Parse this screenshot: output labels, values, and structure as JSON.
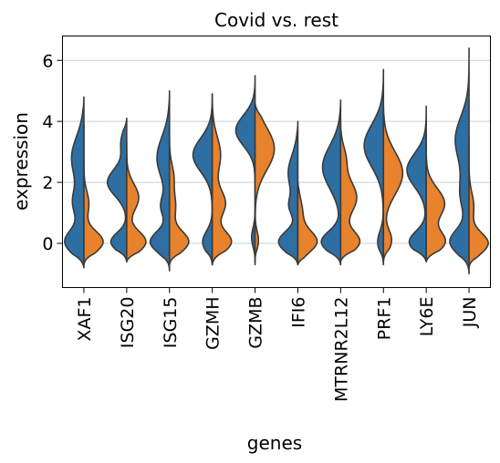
{
  "chart_data": {
    "type": "violin",
    "title": "Covid vs. rest",
    "xlabel": "genes",
    "ylabel": "expression",
    "ylim": [
      -1.45,
      6.8
    ],
    "yticks": [
      0,
      2,
      4,
      6
    ],
    "grid": "horizontal",
    "split": true,
    "categories": [
      "XAF1",
      "ISG20",
      "ISG15",
      "GZMH",
      "GZMB",
      "IFI6",
      "MTRNR2L12",
      "PRF1",
      "LY6E",
      "JUN"
    ],
    "series": [
      {
        "color": "#2e6fa3",
        "side": "left",
        "distributions": [
          {
            "min": -0.8,
            "max": 4.8,
            "peaks": [
              [
                0.05,
                0.85,
                0.4
              ],
              [
                1.3,
                0.45,
                0.45
              ],
              [
                2.8,
                0.55,
                0.7
              ]
            ]
          },
          {
            "min": -0.6,
            "max": 4.1,
            "peaks": [
              [
                0.05,
                0.7,
                0.3
              ],
              [
                2.0,
                0.85,
                0.45
              ],
              [
                3.3,
                0.25,
                0.4
              ]
            ]
          },
          {
            "min": -0.9,
            "max": 5.0,
            "peaks": [
              [
                0.05,
                0.85,
                0.35
              ],
              [
                1.2,
                0.35,
                0.35
              ],
              [
                2.8,
                0.55,
                0.7
              ]
            ]
          },
          {
            "min": -0.7,
            "max": 4.9,
            "peaks": [
              [
                0.05,
                0.5,
                0.35
              ],
              [
                2.9,
                1.0,
                0.55
              ]
            ]
          },
          {
            "min": -0.7,
            "max": 5.5,
            "peaks": [
              [
                0.2,
                0.18,
                0.3
              ],
              [
                3.7,
                1.0,
                0.5
              ]
            ]
          },
          {
            "min": -0.7,
            "max": 4.0,
            "peaks": [
              [
                0.05,
                0.8,
                0.35
              ],
              [
                1.2,
                0.3,
                0.3
              ],
              [
                2.3,
                0.4,
                0.6
              ]
            ]
          },
          {
            "min": -0.7,
            "max": 4.7,
            "peaks": [
              [
                0.05,
                0.8,
                0.35
              ],
              [
                2.5,
                0.75,
                0.7
              ]
            ]
          },
          {
            "min": -0.7,
            "max": 5.7,
            "peaks": [
              [
                0.05,
                0.3,
                0.35
              ],
              [
                3.2,
                1.0,
                0.7
              ]
            ]
          },
          {
            "min": -0.6,
            "max": 4.5,
            "peaks": [
              [
                0.05,
                0.75,
                0.35
              ],
              [
                2.4,
                0.85,
                0.55
              ]
            ]
          },
          {
            "min": -1.0,
            "max": 6.4,
            "peaks": [
              [
                0.05,
                0.9,
                0.4
              ],
              [
                1.6,
                0.4,
                0.6
              ],
              [
                3.4,
                0.65,
                0.75
              ]
            ]
          }
        ]
      },
      {
        "color": "#e8822c",
        "side": "right",
        "distributions": [
          {
            "min": -0.7,
            "max": 3.9,
            "peaks": [
              [
                0.05,
                0.85,
                0.35
              ],
              [
                1.3,
                0.22,
                0.4
              ]
            ]
          },
          {
            "min": -0.6,
            "max": 3.3,
            "peaks": [
              [
                0.05,
                0.8,
                0.35
              ],
              [
                1.5,
                0.5,
                0.45
              ]
            ]
          },
          {
            "min": -0.7,
            "max": 3.9,
            "peaks": [
              [
                0.05,
                0.95,
                0.35
              ],
              [
                1.2,
                0.3,
                0.45
              ],
              [
                2.2,
                0.2,
                0.4
              ]
            ]
          },
          {
            "min": -0.7,
            "max": 4.9,
            "peaks": [
              [
                0.05,
                0.8,
                0.35
              ],
              [
                1.3,
                0.55,
                0.45
              ],
              [
                2.9,
                0.35,
                0.6
              ]
            ]
          },
          {
            "min": -0.6,
            "max": 4.6,
            "peaks": [
              [
                0.1,
                0.15,
                0.3
              ],
              [
                3.1,
                0.85,
                0.7
              ]
            ]
          },
          {
            "min": -0.7,
            "max": 2.0,
            "peaks": [
              [
                0.05,
                1.0,
                0.35
              ],
              [
                1.0,
                0.25,
                0.45
              ]
            ]
          },
          {
            "min": -0.6,
            "max": 4.0,
            "peaks": [
              [
                0.05,
                0.7,
                0.35
              ],
              [
                1.5,
                0.6,
                0.55
              ],
              [
                2.8,
                0.18,
                0.4
              ]
            ]
          },
          {
            "min": -0.6,
            "max": 4.6,
            "peaks": [
              [
                0.1,
                0.4,
                0.35
              ],
              [
                2.3,
                0.95,
                0.7
              ]
            ]
          },
          {
            "min": -0.6,
            "max": 4.0,
            "peaks": [
              [
                0.05,
                0.8,
                0.35
              ],
              [
                1.3,
                0.8,
                0.5
              ]
            ]
          },
          {
            "min": -0.8,
            "max": 3.5,
            "peaks": [
              [
                0.0,
                1.0,
                0.35
              ],
              [
                1.2,
                0.25,
                0.45
              ]
            ]
          }
        ]
      }
    ]
  }
}
